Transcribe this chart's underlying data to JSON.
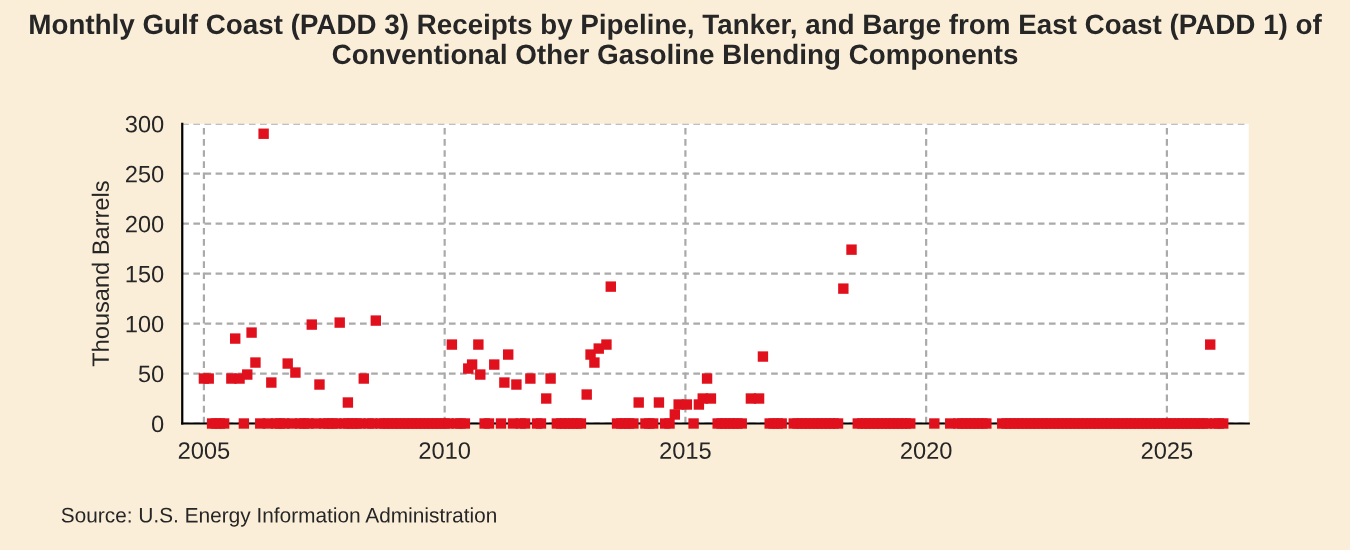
{
  "chart_data": {
    "type": "scatter",
    "title": "Monthly Gulf Coast (PADD 3) Receipts by Pipeline, Tanker, and Barge from East Coast (PADD 1) of Conventional Other Gasoline Blending Components",
    "ylabel": "Thousand Barrels",
    "annotations": [
      "Source: U.S. Energy Information Administration"
    ],
    "series": [
      {
        "color": "#e0101c",
        "x": [
          2005.0,
          2005.1,
          2005.57,
          2005.65,
          2005.74,
          2005.9,
          2005.99,
          2006.07,
          2006.24,
          2006.4,
          2006.74,
          2006.9,
          2007.24,
          2007.4,
          2007.82,
          2007.99,
          2008.32,
          2008.57,
          2010.15,
          2010.49,
          2010.57,
          2010.7,
          2010.74,
          2011.03,
          2011.24,
          2011.32,
          2011.49,
          2011.78,
          2012.11,
          2012.2,
          2012.95,
          2013.03,
          2013.11,
          2013.2,
          2013.36,
          2013.45,
          2014.03,
          2014.45,
          2014.78,
          2014.86,
          2015.03,
          2015.28,
          2015.36,
          2015.45,
          2015.53,
          2016.36,
          2016.53,
          2016.61,
          2018.28,
          2018.45,
          2025.9,
          2005.17,
          2005.25,
          2005.33,
          2005.42,
          2005.83,
          2006.17,
          2006.33,
          2006.5,
          2006.58,
          2006.67,
          2006.83,
          2007.0,
          2007.08,
          2007.17,
          2007.33,
          2007.5,
          2007.58,
          2007.67,
          2007.75,
          2007.92,
          2008.0,
          2008.08,
          2008.17,
          2008.25,
          2008.42,
          2008.5,
          2008.67,
          2008.75,
          2008.83,
          2008.92,
          2009.0,
          2009.08,
          2009.17,
          2009.25,
          2009.33,
          2009.42,
          2009.5,
          2009.58,
          2009.67,
          2009.75,
          2009.83,
          2009.92,
          2010.0,
          2010.08,
          2010.25,
          2010.33,
          2010.42,
          2010.83,
          2010.92,
          2011.17,
          2011.42,
          2011.58,
          2011.67,
          2011.92,
          2012.0,
          2012.33,
          2012.42,
          2012.5,
          2012.58,
          2012.67,
          2012.75,
          2012.83,
          2013.58,
          2013.67,
          2013.75,
          2013.83,
          2013.92,
          2014.17,
          2014.25,
          2014.33,
          2014.58,
          2014.67,
          2015.17,
          2015.67,
          2015.75,
          2015.83,
          2015.92,
          2016.0,
          2016.08,
          2016.17,
          2016.75,
          2016.83,
          2016.92,
          2017.0,
          2017.25,
          2017.33,
          2017.42,
          2017.5,
          2017.58,
          2017.67,
          2017.75,
          2017.83,
          2017.92,
          2018.0,
          2018.08,
          2018.17,
          2018.58,
          2018.67,
          2018.75,
          2018.83,
          2018.92,
          2019.0,
          2019.08,
          2019.17,
          2019.25,
          2019.33,
          2019.42,
          2019.5,
          2019.58,
          2019.67,
          2020.17,
          2020.5,
          2020.67,
          2020.75,
          2020.83,
          2020.92,
          2021.0,
          2021.08,
          2021.17,
          2021.25,
          2021.58,
          2021.67,
          2021.75,
          2021.83,
          2021.92,
          2022.0,
          2022.08,
          2022.17,
          2022.25,
          2022.33,
          2022.42,
          2022.5,
          2022.58,
          2022.67,
          2022.75,
          2022.83,
          2022.92,
          2023.0,
          2023.08,
          2023.17,
          2023.25,
          2023.33,
          2023.42,
          2023.5,
          2023.58,
          2023.67,
          2023.75,
          2023.83,
          2023.92,
          2024.0,
          2024.08,
          2024.17,
          2024.25,
          2024.33,
          2024.42,
          2024.5,
          2024.58,
          2024.67,
          2024.75,
          2024.83,
          2024.92,
          2025.0,
          2025.08,
          2025.17,
          2025.25,
          2025.33,
          2025.42,
          2025.5,
          2025.58,
          2025.67,
          2025.75,
          2025.83,
          2026.0,
          2026.08,
          2026.17
        ],
        "values": [
          45,
          45,
          45,
          85,
          45,
          49,
          91,
          61,
          290,
          41,
          60,
          51,
          99,
          39,
          101,
          21,
          45,
          103,
          79,
          55,
          59,
          79,
          49,
          59,
          41,
          69,
          39,
          45,
          25,
          45,
          29,
          69,
          61,
          75,
          79,
          137,
          21,
          21,
          9,
          19,
          19,
          19,
          25,
          45,
          25,
          25,
          25,
          67,
          135,
          174,
          79,
          0,
          0,
          0,
          0,
          0,
          0,
          0,
          0,
          0,
          0,
          0,
          0,
          0,
          0,
          0,
          0,
          0,
          0,
          0,
          0,
          0,
          0,
          0,
          0,
          0,
          0,
          0,
          0,
          0,
          0,
          0,
          0,
          0,
          0,
          0,
          0,
          0,
          0,
          0,
          0,
          0,
          0,
          0,
          0,
          0,
          0,
          0,
          0,
          0,
          0,
          0,
          0,
          0,
          0,
          0,
          0,
          0,
          0,
          0,
          0,
          0,
          0,
          0,
          0,
          0,
          0,
          0,
          0,
          0,
          0,
          0,
          0,
          0,
          0,
          0,
          0,
          0,
          0,
          0,
          0,
          0,
          0,
          0,
          0,
          0,
          0,
          0,
          0,
          0,
          0,
          0,
          0,
          0,
          0,
          0,
          0,
          0,
          0,
          0,
          0,
          0,
          0,
          0,
          0,
          0,
          0,
          0,
          0,
          0,
          0,
          0,
          0,
          0,
          0,
          0,
          0,
          0,
          0,
          0,
          0,
          0,
          0,
          0,
          0,
          0,
          0,
          0,
          0,
          0,
          0,
          0,
          0,
          0,
          0,
          0,
          0,
          0,
          0,
          0,
          0,
          0,
          0,
          0,
          0,
          0,
          0,
          0,
          0,
          0,
          0,
          0,
          0,
          0,
          0,
          0,
          0,
          0,
          0,
          0,
          0,
          0,
          0,
          0,
          0,
          0,
          0,
          0,
          0,
          0,
          0,
          0,
          0,
          0,
          0,
          0
        ]
      }
    ],
    "xlim": [
      2004.55,
      2026.7
    ],
    "xticks": [
      2005,
      2010,
      2015,
      2020,
      2025
    ],
    "ylim": [
      0,
      300
    ],
    "yticks": [
      0,
      50,
      100,
      150,
      200,
      250,
      300
    ],
    "grid": true,
    "marker": "square",
    "legend": false
  }
}
